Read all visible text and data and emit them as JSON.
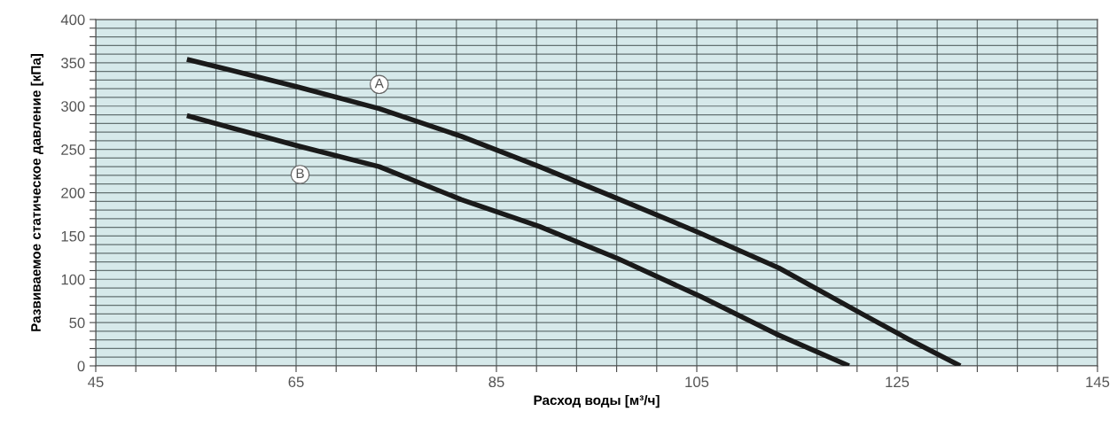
{
  "chart_data": {
    "type": "line",
    "xlabel": "Расход воды [м³/ч]",
    "ylabel": "Развиваемое статическое давление [кПа]",
    "series": [
      {
        "color": "#1a1a1a",
        "x": [
          54.1,
          65.2,
          73.3,
          81.5,
          89.3,
          96.5,
          105.4,
          113.2,
          121.5,
          126.1,
          131.3
        ],
        "values": [
          354,
          322,
          297,
          265,
          230,
          196,
          153,
          113,
          60,
          31,
          0
        ]
      },
      {
        "color": "#1a1a1a",
        "x": [
          54.1,
          65.2,
          73.3,
          81.5,
          89.3,
          97.1,
          105.4,
          112.9,
          120.2
        ],
        "values": [
          289,
          254,
          230,
          192,
          161,
          124,
          80,
          37,
          0
        ]
      }
    ],
    "annotations": [
      {
        "text": "A",
        "x": 73.3,
        "y": 325
      },
      {
        "text": "B",
        "x": 65.4,
        "y": 221
      }
    ],
    "xlim": [
      45,
      145
    ],
    "ylim": [
      0,
      400
    ],
    "xticks": [
      45,
      {
        "value": 49,
        "label": null
      },
      {
        "value": 53,
        "label": null
      },
      {
        "value": 57,
        "label": null
      },
      {
        "value": 61,
        "label": null
      },
      65,
      {
        "value": 69,
        "label": null
      },
      {
        "value": 73,
        "label": null
      },
      {
        "value": 77,
        "label": null
      },
      {
        "value": 81,
        "label": null
      },
      85,
      {
        "value": 89,
        "label": null
      },
      {
        "value": 93,
        "label": null
      },
      {
        "value": 97,
        "label": null
      },
      {
        "value": 101,
        "label": null
      },
      105,
      {
        "value": 109,
        "label": null
      },
      {
        "value": 113,
        "label": null
      },
      {
        "value": 117,
        "label": null
      },
      {
        "value": 121,
        "label": null
      },
      125,
      {
        "value": 129,
        "label": null
      },
      {
        "value": 133,
        "label": null
      },
      {
        "value": 137,
        "label": null
      },
      {
        "value": 141,
        "label": null
      },
      145
    ],
    "yticks": [
      0,
      {
        "value": 10,
        "label": null
      },
      {
        "value": 20,
        "label": null
      },
      {
        "value": 30,
        "label": null
      },
      {
        "value": 40,
        "label": null
      },
      50,
      {
        "value": 60,
        "label": null
      },
      {
        "value": 70,
        "label": null
      },
      {
        "value": 80,
        "label": null
      },
      {
        "value": 90,
        "label": null
      },
      100,
      {
        "value": 110,
        "label": null
      },
      {
        "value": 120,
        "label": null
      },
      {
        "value": 130,
        "label": null
      },
      {
        "value": 140,
        "label": null
      },
      150,
      {
        "value": 160,
        "label": null
      },
      {
        "value": 170,
        "label": null
      },
      {
        "value": 180,
        "label": null
      },
      {
        "value": 190,
        "label": null
      },
      200,
      {
        "value": 210,
        "label": null
      },
      {
        "value": 220,
        "label": null
      },
      {
        "value": 230,
        "label": null
      },
      {
        "value": 240,
        "label": null
      },
      250,
      {
        "value": 260,
        "label": null
      },
      {
        "value": 270,
        "label": null
      },
      {
        "value": 280,
        "label": null
      },
      {
        "value": 290,
        "label": null
      },
      300,
      {
        "value": 310,
        "label": null
      },
      {
        "value": 320,
        "label": null
      },
      {
        "value": 330,
        "label": null
      },
      {
        "value": 340,
        "label": null
      },
      350,
      {
        "value": 360,
        "label": null
      },
      {
        "value": 370,
        "label": null
      },
      {
        "value": 380,
        "label": null
      },
      {
        "value": 390,
        "label": null
      },
      400
    ],
    "grid": true,
    "marker": "none",
    "line_style": "solid"
  }
}
